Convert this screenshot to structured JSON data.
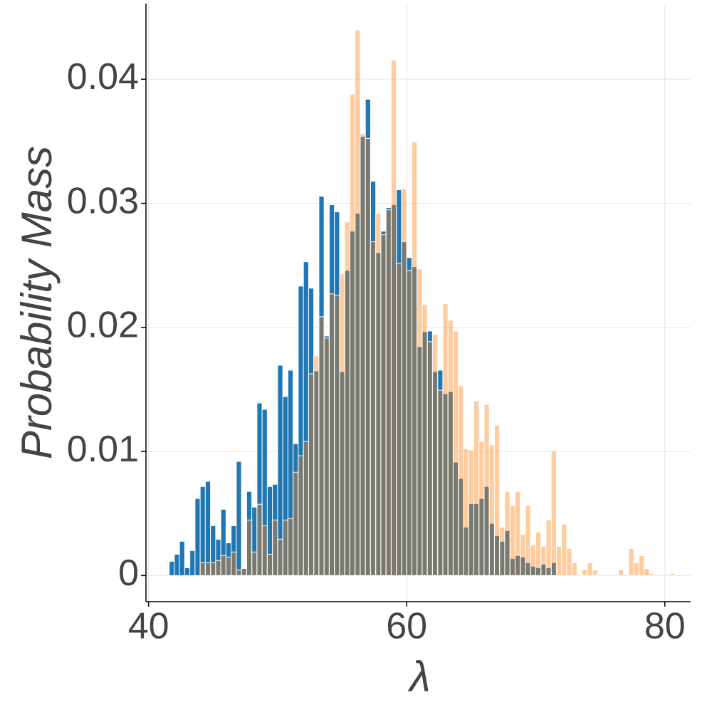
{
  "chart_data": {
    "type": "histogram",
    "xlabel": "λ",
    "ylabel": "Probability Mass",
    "bins": [
      41.6,
      42.0,
      42.4,
      42.8,
      43.2,
      43.6,
      44.0,
      44.4,
      44.8,
      45.2,
      45.6,
      46.0,
      46.4,
      46.8,
      47.2,
      47.6,
      48.0,
      48.4,
      48.8,
      49.2,
      49.6,
      50.0,
      50.4,
      50.8,
      51.2,
      51.6,
      52.0,
      52.4,
      52.8,
      53.2,
      53.6,
      54.0,
      54.4,
      54.8,
      55.2,
      55.6,
      56.0,
      56.4,
      56.8,
      57.2,
      57.6,
      58.0,
      58.4,
      58.8,
      59.2,
      59.6,
      60.0,
      60.4,
      60.8,
      61.2,
      61.6,
      62.0,
      62.4,
      62.8,
      63.2,
      63.6,
      64.0,
      64.4,
      64.8,
      65.2,
      65.6,
      66.0,
      66.4,
      66.8,
      67.2,
      67.6,
      68.0,
      68.4,
      68.8,
      69.2,
      69.6,
      70.0,
      70.4,
      70.8,
      71.2,
      71.6,
      72.0,
      72.4,
      72.8,
      73.2,
      73.6,
      74.0,
      74.4,
      74.8,
      75.2,
      75.6,
      76.0,
      76.4,
      76.8,
      77.2,
      77.6,
      78.0,
      78.4,
      78.8,
      79.2,
      79.6,
      80.0,
      80.4,
      80.8
    ],
    "series": [
      {
        "color": "#1f77b4",
        "alpha": 1,
        "values": [
          0.00115,
          0.00172,
          0.00276,
          0.00063,
          0.00201,
          0.00621,
          0.00718,
          0.00759,
          0.00402,
          0.00293,
          0.00534,
          0.00264,
          0.00402,
          0.0092,
          0.00063,
          0.00678,
          0.00552,
          0.01391,
          0.01339,
          0.00718,
          0.00736,
          0.01695,
          0.01443,
          0.01655,
          0.01063,
          0.02333,
          0.02529,
          0.02316,
          0.01649,
          0.03057,
          0.01931,
          0.02989,
          0.02931,
          0.01644,
          0.0246,
          0.02776,
          0.0292,
          0.0354,
          0.03839,
          0.03178,
          0.02603,
          0.02776,
          0.02966,
          0.02989,
          0.03109,
          0.0269,
          0.02563,
          0.02489,
          0.01845,
          0.01966,
          0.01971,
          0.01644,
          0.01655,
          0.01466,
          0.01483,
          0.00914,
          0.00782,
          0.00391,
          0.0058,
          0.0058,
          0.00621,
          0.00718,
          0.0042,
          0.00322,
          0.00276,
          0.00362,
          0.00138,
          0.00161,
          0.00149,
          0.00103,
          0.00075,
          0.00063,
          0.00092,
          0.00063,
          0.00103,
          0,
          0,
          0,
          0,
          0,
          0,
          0,
          0,
          0,
          0,
          0,
          0,
          0,
          0,
          0,
          0,
          0,
          0,
          0,
          0,
          0,
          0,
          0
        ]
      },
      {
        "color": "#ff7f0e",
        "alpha": 0.4,
        "values": [
          0,
          0,
          0,
          0,
          0,
          0,
          0.00103,
          0.00103,
          0.00103,
          0.00121,
          0.00161,
          0.00149,
          0.0019,
          0.00046,
          0.00057,
          0.00448,
          0.0019,
          0.00575,
          0.00402,
          0.00172,
          0.00448,
          0.00293,
          0.00448,
          0.0046,
          0.00833,
          0.00966,
          0.0108,
          0.01626,
          0.0177,
          0.02086,
          0.01914,
          0.0227,
          0.02259,
          0.02431,
          0.02851,
          0.03879,
          0.04397,
          0.03563,
          0.03523,
          0.0269,
          0.0292,
          0.02747,
          0.02948,
          0.04155,
          0.02517,
          0.03121,
          0.0246,
          0.03494,
          0.02471,
          0.02184,
          0.01885,
          0.01943,
          0.01494,
          0.0219,
          0.02057,
          0.01971,
          0.01529,
          0.01023,
          0.01011,
          0.01408,
          0.0108,
          0.01379,
          0.01052,
          0.01213,
          0.00391,
          0.00678,
          0.00563,
          0.00678,
          0.00333,
          0.00563,
          0.00247,
          0.00351,
          0.00236,
          0.00448,
          0.01006,
          0.00236,
          0.00414,
          0.00218,
          0.00103,
          0,
          0.00046,
          0.00103,
          0.00046,
          0,
          0,
          0,
          0,
          0.00046,
          0,
          0.00218,
          0.00103,
          0.00161,
          0.00057,
          0.00017,
          0,
          0,
          0,
          0.00017
        ]
      }
    ],
    "xlim": [
      39.8,
      82.0
    ],
    "xticks": [
      40,
      60,
      80
    ],
    "ylim": [
      -0.0021,
      0.0461
    ],
    "yticks": [
      0,
      0.01,
      0.02,
      0.03,
      0.04
    ],
    "grid": true
  }
}
